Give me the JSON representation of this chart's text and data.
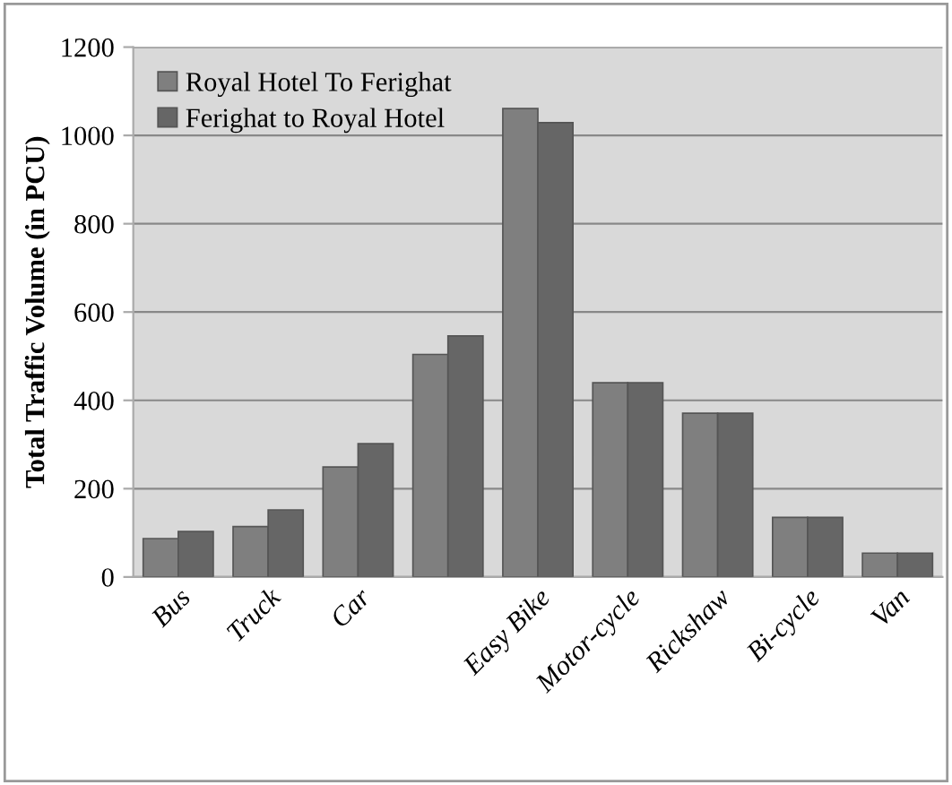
{
  "chart_data": {
    "type": "bar",
    "ylabel": "Total Traffic Volume (in PCU)",
    "categories": [
      "Bus",
      "Truck",
      "Car",
      null,
      "Easy Bike",
      "Motor-cycle",
      "Rickshaw",
      "Bi-cycle",
      "Van"
    ],
    "series": [
      {
        "name": "Royal Hotel To Ferighat",
        "color": "#7f7f7f",
        "values": [
          87,
          114,
          249,
          504,
          1061,
          440,
          371,
          135,
          54
        ]
      },
      {
        "name": "Ferighat to Royal Hotel",
        "color": "#666666",
        "values": [
          103,
          152,
          302,
          546,
          1029,
          440,
          371,
          135,
          54
        ]
      }
    ],
    "ylim": [
      0,
      1200
    ],
    "yticks": [
      0,
      200,
      400,
      600,
      800,
      1000,
      1200
    ],
    "grid": "y",
    "legend": "top left"
  }
}
